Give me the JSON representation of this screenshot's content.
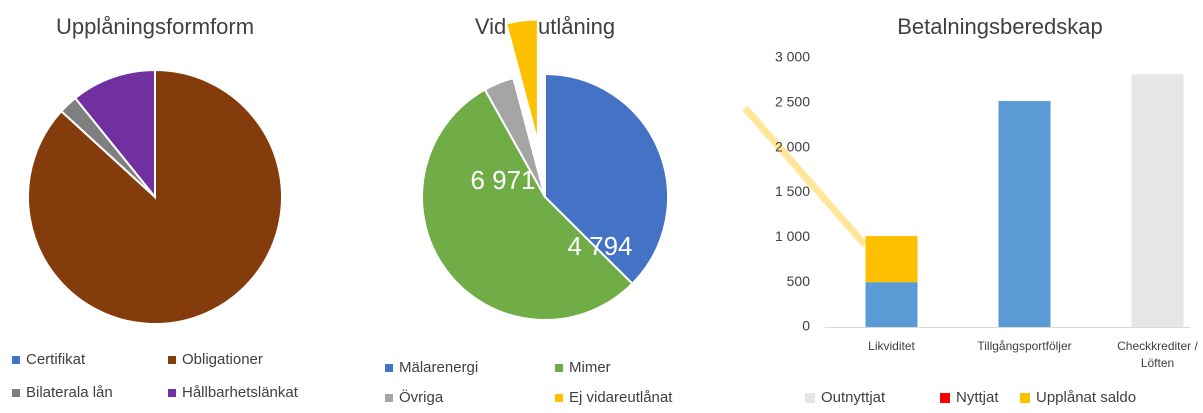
{
  "chart_data": [
    {
      "type": "pie",
      "title": "Upplåningsformform",
      "categories": [
        "Certifikat",
        "Obligationer",
        "Bilaterala lån",
        "Hållbarhetslänkat"
      ],
      "values": [
        0,
        86.8,
        2.4,
        10.8
      ],
      "colors": [
        "#4472c4",
        "#843c0c",
        "#7f7f7f",
        "#7030a0"
      ]
    },
    {
      "type": "pie",
      "title": "Vidareutlåning",
      "categories": [
        "Mälarenergi",
        "Mimer",
        "Övriga",
        "Ej vidareutlånat"
      ],
      "values": [
        4794,
        6971,
        510,
        530
      ],
      "value_labels": [
        "4 794",
        "6 971",
        null,
        null
      ],
      "colors": [
        "#4472c4",
        "#70ad47",
        "#a5a5a5",
        "#ffc000"
      ]
    },
    {
      "type": "bar",
      "title": "Betalningsberedskap",
      "stacked": true,
      "categories": [
        "Likviditet",
        "Tillgångsportföljer",
        "Checkkrediter / Löften"
      ],
      "series": [
        {
          "color": "#5b9bd5",
          "values": [
            500,
            2520,
            0
          ]
        },
        {
          "name": "Outnyttjat",
          "color": "#e7e6e6",
          "values": [
            0,
            0,
            2820
          ]
        },
        {
          "name": "Nyttjat",
          "color": "#ff0000",
          "values": [
            0,
            0,
            0
          ]
        },
        {
          "name": "Upplånat saldo",
          "color": "#ffc000",
          "values": [
            515,
            0,
            0
          ]
        }
      ],
      "ylim": [
        0,
        3000
      ],
      "yticks": [
        0,
        500,
        {
          "value": 1000,
          "label": "1 000"
        },
        {
          "value": 1500,
          "label": "1 500"
        },
        {
          "value": 2000,
          "label": "2 000"
        },
        {
          "value": 2500,
          "label": "2 500"
        },
        {
          "value": 3000,
          "label": "3 000"
        }
      ],
      "grid": false
    }
  ]
}
